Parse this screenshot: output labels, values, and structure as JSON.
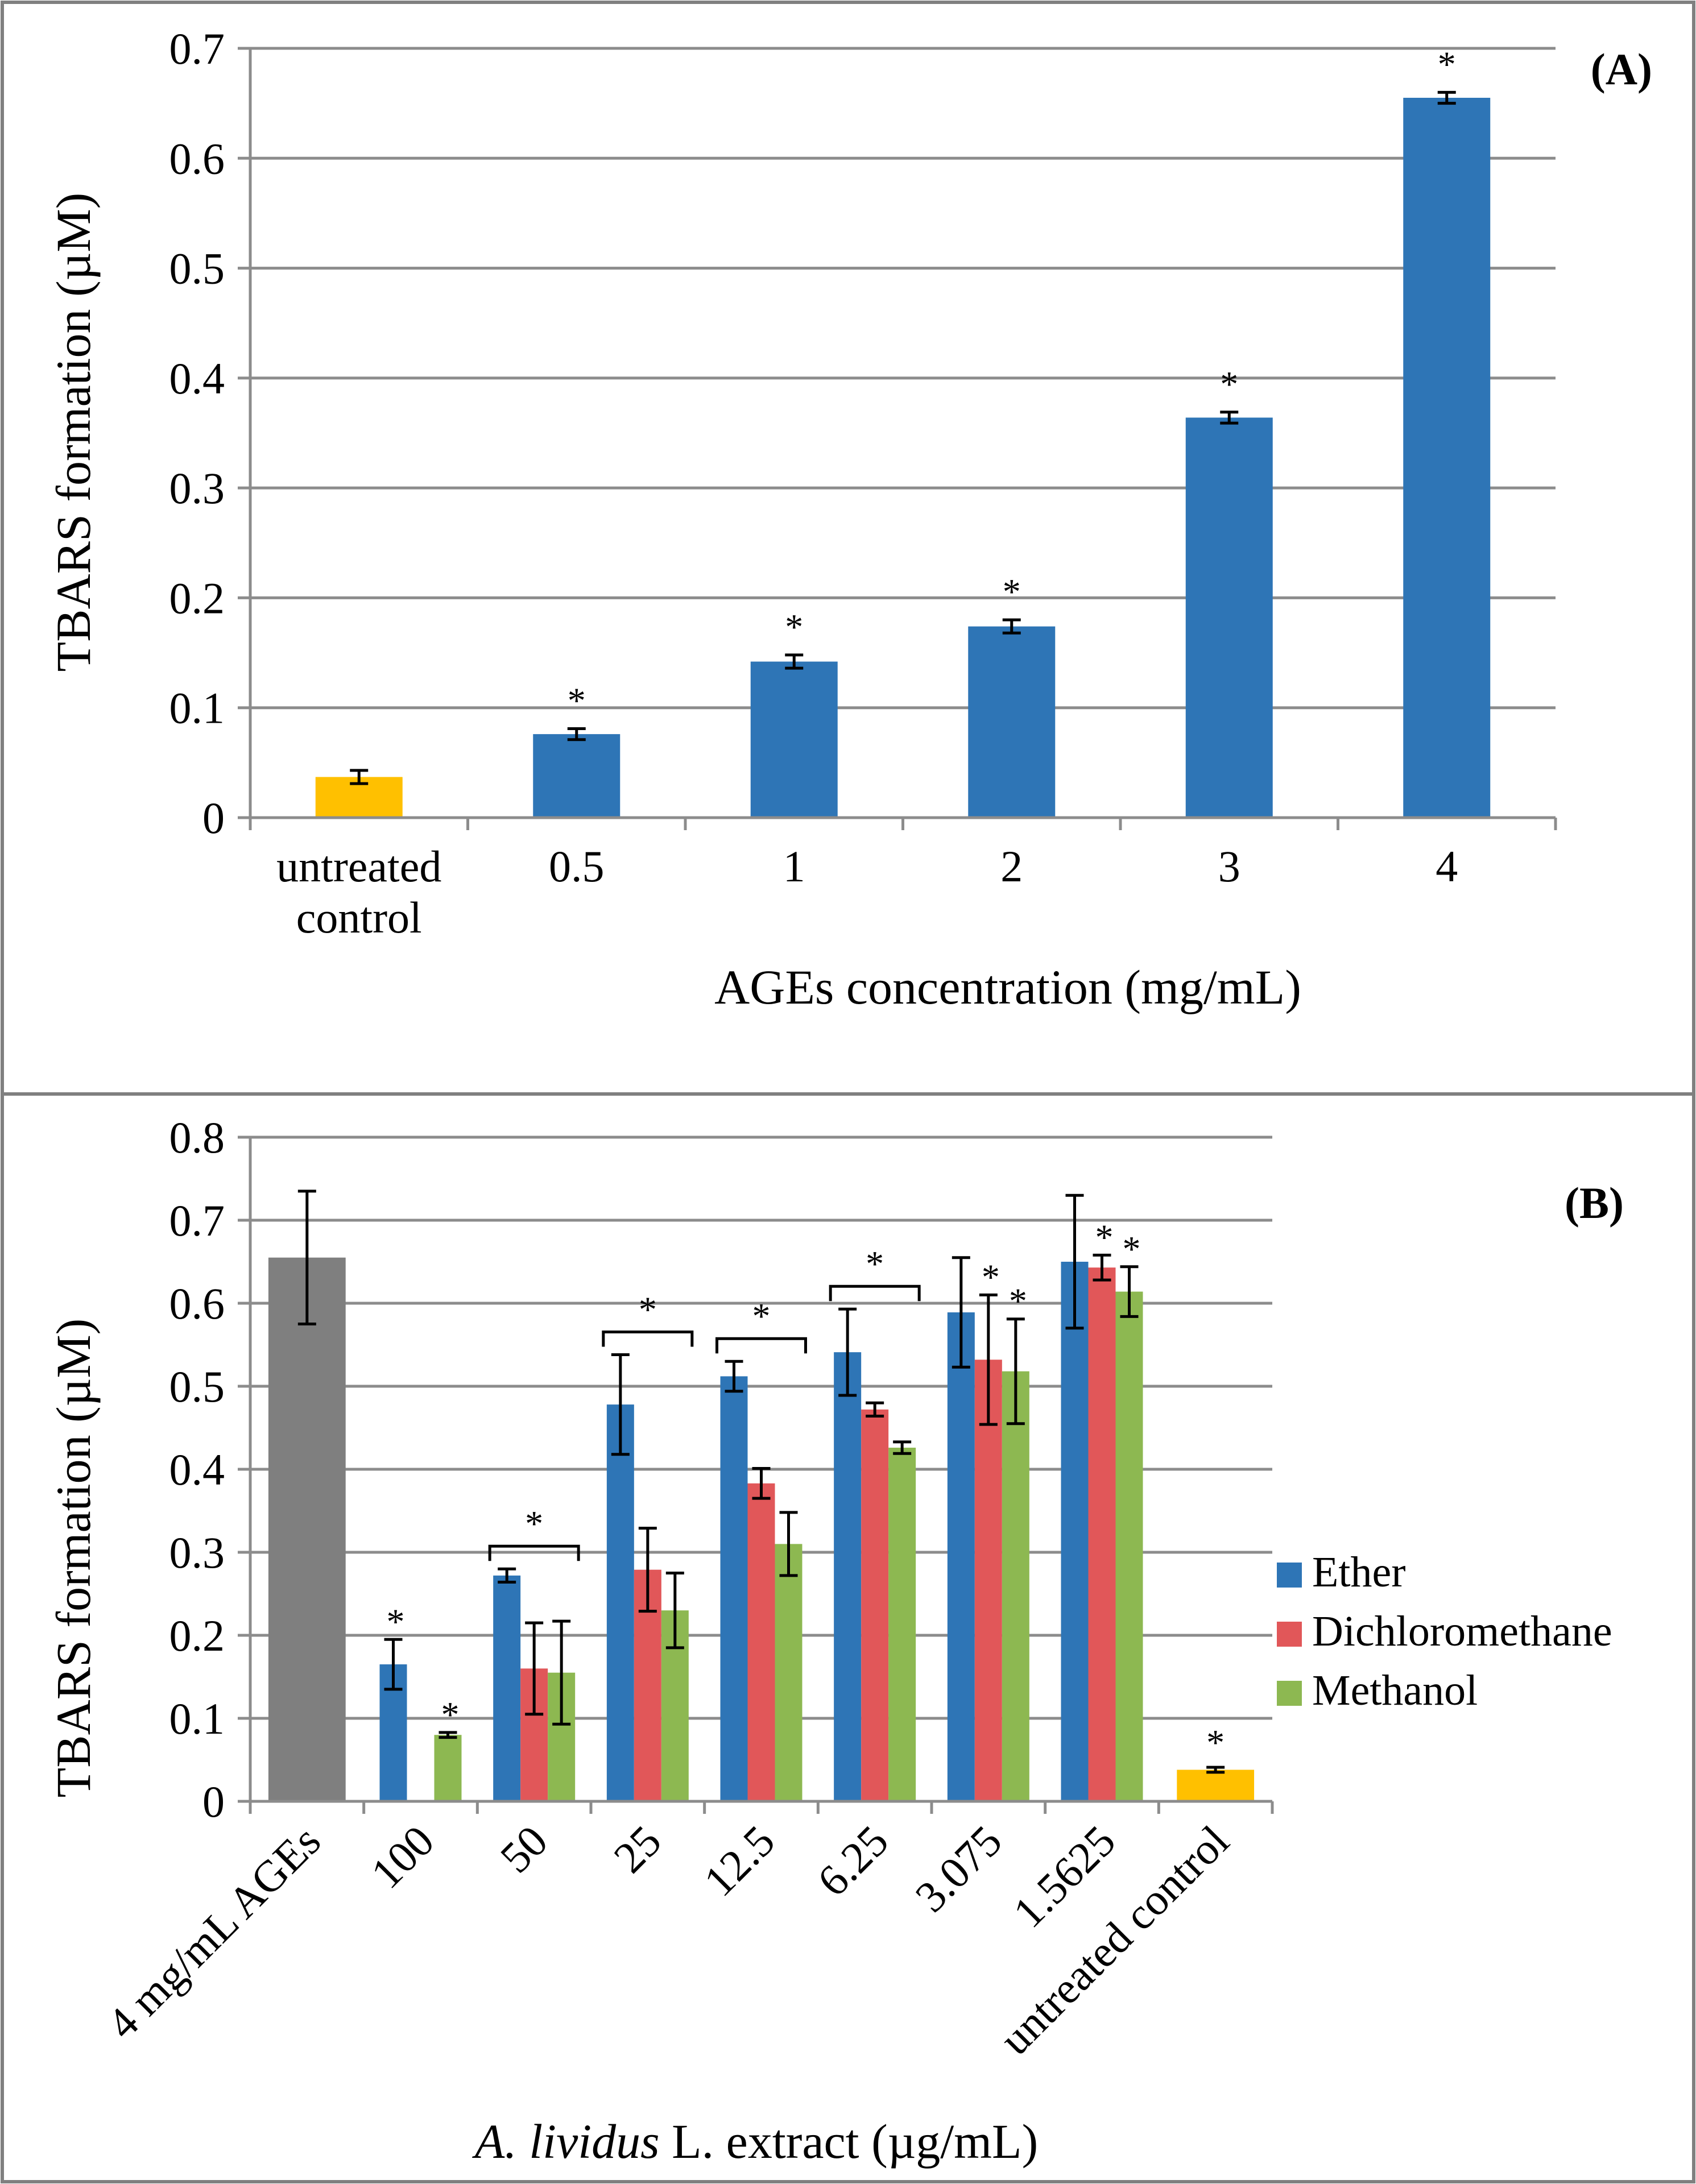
{
  "chart_data": [
    {
      "type": "bar",
      "panel_label": "(A)",
      "categories": [
        "untreated control",
        "0.5",
        "1",
        "2",
        "3",
        "4"
      ],
      "values": [
        0.037,
        0.076,
        0.142,
        0.174,
        0.364,
        0.655
      ],
      "errors": [
        0.006,
        0.005,
        0.006,
        0.006,
        0.005,
        0.005
      ],
      "significance": [
        "",
        "*",
        "*",
        "*",
        "*",
        "*"
      ],
      "bar_colors": [
        "#FFC000",
        "#2E75B6",
        "#2E75B6",
        "#2E75B6",
        "#2E75B6",
        "#2E75B6"
      ],
      "xlabel": "AGEs concentration (mg/mL)",
      "ylabel": "TBARS formation (µM)",
      "ylim": [
        0,
        0.7
      ],
      "yticks": [
        "0",
        "0.1",
        "0.2",
        "0.3",
        "0.4",
        "0.5",
        "0.6",
        "0.7"
      ],
      "grid": true
    },
    {
      "type": "bar",
      "panel_label": "(B)",
      "categories": [
        "4 mg/mL AGEs",
        "100",
        "50",
        "25",
        "12.5",
        "6.25",
        "3.075",
        "1.5625",
        "untreated control"
      ],
      "reference_bar": {
        "category": "4 mg/mL AGEs",
        "value": 0.655,
        "error": 0.08,
        "color": "#7F7F7F"
      },
      "control_bar": {
        "category": "untreated control",
        "value": 0.038,
        "error": 0.003,
        "color": "#FFC000",
        "significance": "*"
      },
      "series": [
        {
          "name": "Ether",
          "color": "#2E75B6",
          "values": [
            null,
            0.165,
            0.272,
            0.478,
            0.512,
            0.541,
            0.589,
            0.65,
            null
          ],
          "errors": [
            null,
            0.03,
            0.008,
            0.06,
            0.018,
            0.052,
            0.066,
            0.08,
            null
          ]
        },
        {
          "name": "Dichloromethane",
          "color": "#E15759",
          "values": [
            null,
            null,
            0.16,
            0.279,
            0.383,
            0.472,
            0.532,
            0.643,
            null
          ],
          "errors": [
            null,
            null,
            0.055,
            0.05,
            0.018,
            0.008,
            0.078,
            0.015,
            null
          ]
        },
        {
          "name": "Methanol",
          "color": "#8DB851",
          "values": [
            null,
            0.08,
            0.155,
            0.23,
            0.31,
            0.426,
            0.518,
            0.614,
            null
          ],
          "errors": [
            null,
            0.003,
            0.062,
            0.045,
            0.038,
            0.007,
            0.063,
            0.03,
            null
          ]
        }
      ],
      "significance_marks": [
        {
          "category": "100",
          "series": "Ether",
          "text": "*"
        },
        {
          "category": "100",
          "series": "Methanol",
          "text": "*"
        },
        {
          "category": "50",
          "bracket": true,
          "text": "*"
        },
        {
          "category": "25",
          "bracket": true,
          "text": "*"
        },
        {
          "category": "12.5",
          "bracket": true,
          "text": "*"
        },
        {
          "category": "6.25",
          "bracket": true,
          "text": "*"
        },
        {
          "category": "3.075",
          "series": "Dichloromethane",
          "text": "*"
        },
        {
          "category": "3.075",
          "series": "Methanol",
          "text": "*"
        },
        {
          "category": "1.5625",
          "series": "Dichloromethane",
          "text": "*"
        },
        {
          "category": "1.5625",
          "series": "Methanol",
          "text": "*"
        }
      ],
      "xlabel_italic": "A. lividus",
      "xlabel_rest": " L. extract (µg/mL)",
      "ylabel": "TBARS formation (µM)",
      "ylim": [
        0,
        0.8
      ],
      "yticks": [
        "0",
        "0.1",
        "0.2",
        "0.3",
        "0.4",
        "0.5",
        "0.6",
        "0.7",
        "0.8"
      ],
      "legend_position": "right",
      "grid": true
    }
  ]
}
